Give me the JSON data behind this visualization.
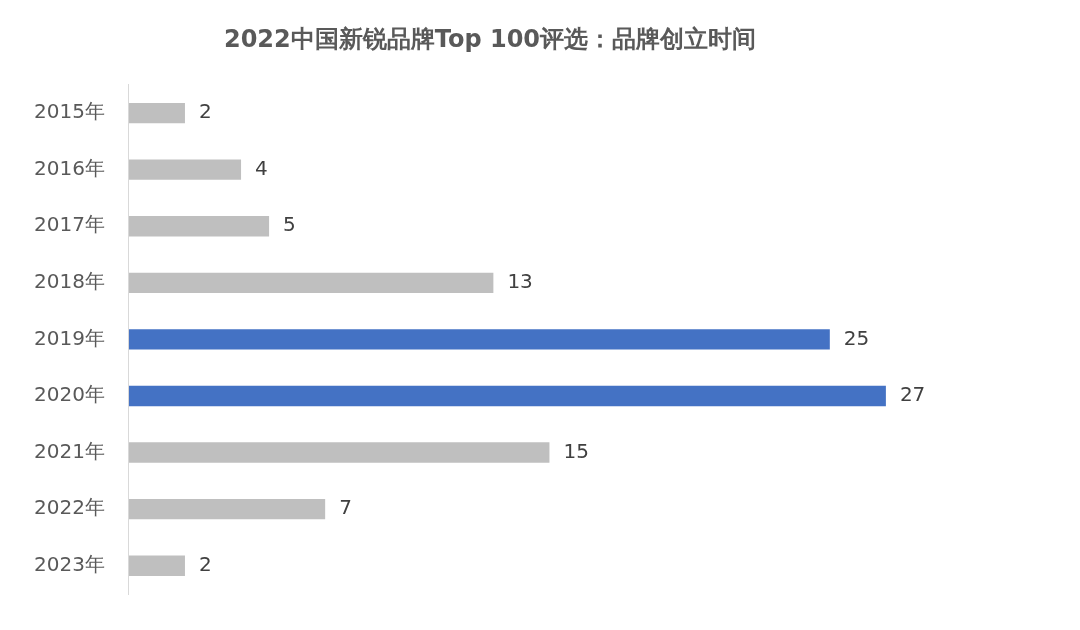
{
  "chart_data": {
    "type": "bar",
    "orientation": "horizontal",
    "title": "2022中国新锐品牌Top 100评选：品牌创立时间",
    "categories": [
      "2015年",
      "2016年",
      "2017年",
      "2018年",
      "2019年",
      "2020年",
      "2021年",
      "2022年",
      "2023年"
    ],
    "values": [
      2,
      4,
      5,
      13,
      25,
      27,
      15,
      7,
      2
    ],
    "colors": [
      "#bfbfbf",
      "#bfbfbf",
      "#bfbfbf",
      "#bfbfbf",
      "#4472c4",
      "#4472c4",
      "#bfbfbf",
      "#bfbfbf",
      "#bfbfbf"
    ],
    "data_labels": true,
    "legend": false,
    "tick_labels": "y"
  }
}
